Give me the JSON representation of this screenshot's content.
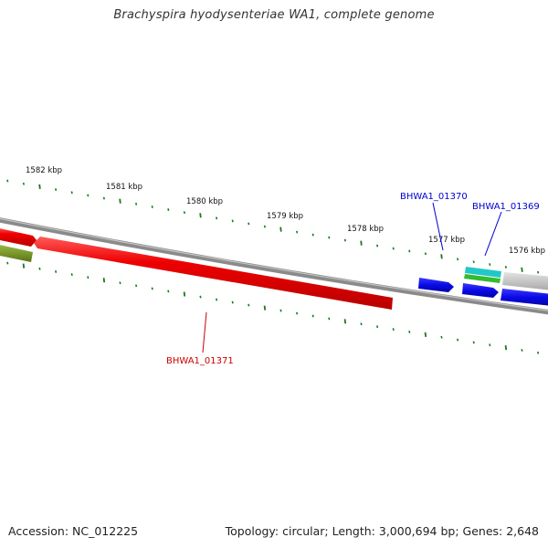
{
  "title": "Brachyspira hyodysenteriae WA1, complete genome",
  "footer": {
    "accession": "Accession: NC_012225",
    "info": "Topology: circular; Length: 3,000,694 bp; Genes: 2,648"
  },
  "scale": {
    "labels": [
      "1582 kbp",
      "1581 kbp",
      "1580 kbp",
      "1579 kbp",
      "1578 kbp",
      "1577 kbp",
      "1576 kbp"
    ]
  },
  "genes": [
    {
      "name": "BHWA1_01371",
      "color": "#cc0000"
    },
    {
      "name": "BHWA1_01370",
      "color": "#0000cc"
    },
    {
      "name": "BHWA1_01369",
      "color": "#0000cc"
    }
  ],
  "colors": {
    "backbone": "#8a8a8a",
    "tick": "#1a7a1a",
    "red_feature": "#ee0000",
    "blue_feature": "#0a0ae6",
    "olive_feature": "#6e8e22",
    "cyan_feature": "#22c8c8",
    "green_feature": "#33bb33",
    "gray_feature": "#bdbdbd"
  }
}
